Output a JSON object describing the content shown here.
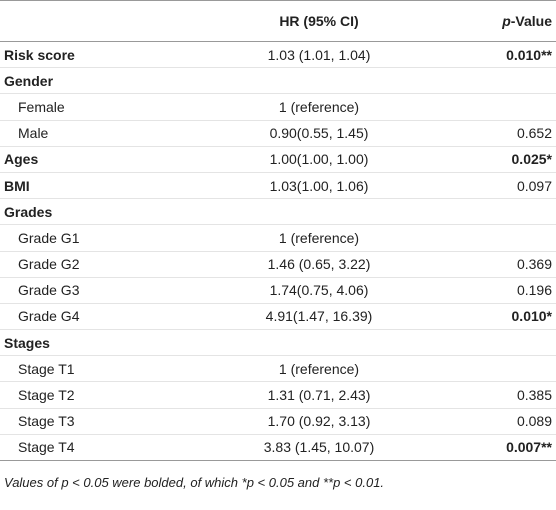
{
  "header": {
    "hr": "HR (95% CI)",
    "p_italic": "p",
    "p_rest": "-Value"
  },
  "rows": [
    {
      "label": "Risk score",
      "hr": "1.03 (1.01, 1.04)",
      "p": "0.010**"
    },
    {
      "label": "Gender"
    },
    {
      "label": "Female",
      "hr": "1 (reference)"
    },
    {
      "label": "Male",
      "hr": "0.90(0.55, 1.45)",
      "p": "0.652"
    },
    {
      "label": "Ages",
      "hr": "1.00(1.00, 1.00)",
      "p": "0.025*"
    },
    {
      "label": "BMI",
      "hr": "1.03(1.00, 1.06)",
      "p": "0.097"
    },
    {
      "label": "Grades"
    },
    {
      "label": "Grade G1",
      "hr": "1 (reference)"
    },
    {
      "label": "Grade G2",
      "hr": "1.46 (0.65, 3.22)",
      "p": "0.369"
    },
    {
      "label": "Grade G3",
      "hr": "1.74(0.75, 4.06)",
      "p": "0.196"
    },
    {
      "label": "Grade G4",
      "hr": "4.91(1.47, 16.39)",
      "p": "0.010*"
    },
    {
      "label": "Stages"
    },
    {
      "label": "Stage T1",
      "hr": "1 (reference)"
    },
    {
      "label": "Stage T2",
      "hr": "1.31 (0.71, 2.43)",
      "p": "0.385"
    },
    {
      "label": "Stage T3",
      "hr": "1.70 (0.92, 3.13)",
      "p": "0.089"
    },
    {
      "label": "Stage T4",
      "hr": "3.83 (1.45, 10.07)",
      "p": "0.007**"
    }
  ],
  "footnote": "Values of p < 0.05 were bolded, of which *p < 0.05 and **p < 0.01."
}
